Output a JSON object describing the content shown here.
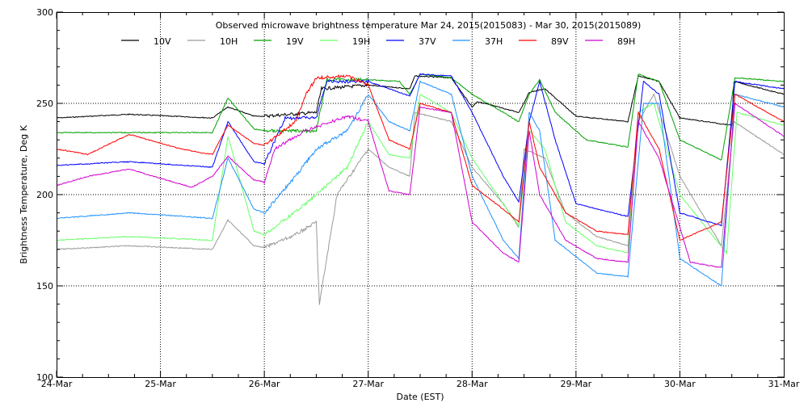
{
  "chart_data": {
    "type": "line",
    "title": "Observed microwave brightness temperature Mar 24, 2015(2015083) - Mar 30, 2015(2015089)",
    "xlabel": "Date (EST)",
    "ylabel": "Brightness Temperature, Deg K",
    "xlim": [
      "2015-03-24T00:00",
      "2015-03-31T00:00"
    ],
    "ylim": [
      100,
      300
    ],
    "x_tick_labels": [
      "24-Mar",
      "25-Mar",
      "26-Mar",
      "27-Mar",
      "28-Mar",
      "29-Mar",
      "30-Mar",
      "31-Mar"
    ],
    "y_tick_labels": [
      "100",
      "150",
      "200",
      "250",
      "300"
    ],
    "grid": "dotted, at each day and at 150/200/250",
    "legend_placement": "top, horizontal",
    "series": [
      {
        "name": "10V",
        "color": "#000000",
        "points": [
          [
            "2015-03-24T00:00",
            242
          ],
          [
            "2015-03-24T16:48",
            244
          ],
          [
            "2015-03-25T12:00",
            242
          ],
          [
            "2015-03-25T15:36",
            248
          ],
          [
            "2015-03-25T21:36",
            243
          ],
          [
            "2015-03-26T00:00",
            243
          ],
          [
            "2015-03-26T12:00",
            245
          ],
          [
            "2015-03-26T13:12",
            258
          ],
          [
            "2015-03-27T00:00",
            260
          ],
          [
            "2015-03-27T09:36",
            258
          ],
          [
            "2015-03-27T10:48",
            265
          ],
          [
            "2015-03-27T19:12",
            264
          ],
          [
            "2015-03-28T00:00",
            248
          ],
          [
            "2015-03-28T01:12",
            251
          ],
          [
            "2015-03-28T10:48",
            245
          ],
          [
            "2015-03-28T13:12",
            256
          ],
          [
            "2015-03-28T16:48",
            258
          ],
          [
            "2015-03-29T00:00",
            243
          ],
          [
            "2015-03-29T12:00",
            240
          ],
          [
            "2015-03-29T14:24",
            265
          ],
          [
            "2015-03-29T19:12",
            262
          ],
          [
            "2015-03-30T00:00",
            242
          ],
          [
            "2015-03-30T12:00",
            238
          ],
          [
            "2015-03-30T12:29",
            262
          ],
          [
            "2015-03-31T00:00",
            255
          ]
        ]
      },
      {
        "name": "10H",
        "color": "#999999",
        "points": [
          [
            "2015-03-24T00:00",
            170
          ],
          [
            "2015-03-24T16:48",
            172
          ],
          [
            "2015-03-25T12:00",
            170
          ],
          [
            "2015-03-25T15:36",
            186
          ],
          [
            "2015-03-25T21:36",
            172
          ],
          [
            "2015-03-26T00:00",
            171
          ],
          [
            "2015-03-26T07:12",
            178
          ],
          [
            "2015-03-26T12:00",
            185
          ],
          [
            "2015-03-26T12:43",
            140
          ],
          [
            "2015-03-26T16:48",
            200
          ],
          [
            "2015-03-27T00:00",
            225
          ],
          [
            "2015-03-27T04:48",
            215
          ],
          [
            "2015-03-27T09:36",
            210
          ],
          [
            "2015-03-27T10:48",
            245
          ],
          [
            "2015-03-27T19:12",
            240
          ],
          [
            "2015-03-28T00:00",
            215
          ],
          [
            "2015-03-28T07:12",
            195
          ],
          [
            "2015-03-28T10:48",
            182
          ],
          [
            "2015-03-28T12:00",
            225
          ],
          [
            "2015-03-28T16:48",
            220
          ],
          [
            "2015-03-28T21:36",
            190
          ],
          [
            "2015-03-29T04:48",
            177
          ],
          [
            "2015-03-29T12:00",
            172
          ],
          [
            "2015-03-29T14:24",
            240
          ],
          [
            "2015-03-29T18:00",
            255
          ],
          [
            "2015-03-30T00:00",
            210
          ],
          [
            "2015-03-30T09:36",
            172
          ],
          [
            "2015-03-30T12:29",
            240
          ],
          [
            "2015-03-31T00:00",
            222
          ]
        ]
      },
      {
        "name": "19V",
        "color": "#00a000",
        "points": [
          [
            "2015-03-24T00:00",
            234
          ],
          [
            "2015-03-25T12:00",
            234
          ],
          [
            "2015-03-25T15:36",
            253
          ],
          [
            "2015-03-25T21:36",
            236
          ],
          [
            "2015-03-26T00:00",
            235
          ],
          [
            "2015-03-26T12:00",
            235
          ],
          [
            "2015-03-26T14:24",
            263
          ],
          [
            "2015-03-27T00:00",
            263
          ],
          [
            "2015-03-27T07:12",
            262
          ],
          [
            "2015-03-27T09:36",
            255
          ],
          [
            "2015-03-27T12:00",
            266
          ],
          [
            "2015-03-27T19:12",
            264
          ],
          [
            "2015-03-28T00:00",
            255
          ],
          [
            "2015-03-28T07:12",
            245
          ],
          [
            "2015-03-28T10:48",
            240
          ],
          [
            "2015-03-28T13:12",
            255
          ],
          [
            "2015-03-28T15:36",
            263
          ],
          [
            "2015-03-28T19:12",
            245
          ],
          [
            "2015-03-29T02:24",
            230
          ],
          [
            "2015-03-29T12:00",
            226
          ],
          [
            "2015-03-29T14:24",
            266
          ],
          [
            "2015-03-29T19:12",
            262
          ],
          [
            "2015-03-30T00:00",
            230
          ],
          [
            "2015-03-30T09:36",
            219
          ],
          [
            "2015-03-30T12:43",
            264
          ],
          [
            "2015-03-31T00:00",
            262
          ]
        ]
      },
      {
        "name": "19H",
        "color": "#66ff66",
        "points": [
          [
            "2015-03-24T00:00",
            175
          ],
          [
            "2015-03-24T16:48",
            177
          ],
          [
            "2015-03-25T12:00",
            175
          ],
          [
            "2015-03-25T15:36",
            232
          ],
          [
            "2015-03-25T21:36",
            180
          ],
          [
            "2015-03-26T00:00",
            178
          ],
          [
            "2015-03-26T09:36",
            195
          ],
          [
            "2015-03-26T19:12",
            215
          ],
          [
            "2015-03-27T00:00",
            240
          ],
          [
            "2015-03-27T04:48",
            222
          ],
          [
            "2015-03-27T09:36",
            220
          ],
          [
            "2015-03-27T12:00",
            255
          ],
          [
            "2015-03-27T19:12",
            245
          ],
          [
            "2015-03-28T00:00",
            220
          ],
          [
            "2015-03-28T07:12",
            195
          ],
          [
            "2015-03-28T10:48",
            183
          ],
          [
            "2015-03-28T13:12",
            235
          ],
          [
            "2015-03-28T16:48",
            225
          ],
          [
            "2015-03-28T21:36",
            185
          ],
          [
            "2015-03-29T04:48",
            172
          ],
          [
            "2015-03-29T12:00",
            168
          ],
          [
            "2015-03-29T14:24",
            245
          ],
          [
            "2015-03-29T18:00",
            250
          ],
          [
            "2015-03-30T00:00",
            200
          ],
          [
            "2015-03-30T10:48",
            168
          ],
          [
            "2015-03-30T13:12",
            245
          ],
          [
            "2015-03-31T00:00",
            238
          ]
        ]
      },
      {
        "name": "37V",
        "color": "#0000ff",
        "points": [
          [
            "2015-03-24T00:00",
            216
          ],
          [
            "2015-03-24T16:48",
            218
          ],
          [
            "2015-03-25T12:00",
            215
          ],
          [
            "2015-03-25T15:36",
            240
          ],
          [
            "2015-03-25T21:36",
            218
          ],
          [
            "2015-03-26T00:00",
            217
          ],
          [
            "2015-03-26T04:48",
            242
          ],
          [
            "2015-03-26T12:00",
            242
          ],
          [
            "2015-03-26T14:24",
            262
          ],
          [
            "2015-03-27T00:00",
            262
          ],
          [
            "2015-03-27T09:36",
            254
          ],
          [
            "2015-03-27T12:00",
            266
          ],
          [
            "2015-03-27T19:12",
            265
          ],
          [
            "2015-03-28T00:00",
            245
          ],
          [
            "2015-03-28T07:12",
            210
          ],
          [
            "2015-03-28T10:48",
            196
          ],
          [
            "2015-03-28T13:12",
            240
          ],
          [
            "2015-03-28T15:36",
            262
          ],
          [
            "2015-03-28T19:12",
            230
          ],
          [
            "2015-03-29T00:00",
            195
          ],
          [
            "2015-03-29T12:00",
            188
          ],
          [
            "2015-03-29T15:36",
            262
          ],
          [
            "2015-03-29T19:12",
            255
          ],
          [
            "2015-03-30T00:00",
            190
          ],
          [
            "2015-03-30T09:36",
            183
          ],
          [
            "2015-03-30T12:43",
            262
          ],
          [
            "2015-03-31T00:00",
            258
          ]
        ]
      },
      {
        "name": "37H",
        "color": "#1e90ff",
        "points": [
          [
            "2015-03-24T00:00",
            187
          ],
          [
            "2015-03-24T16:48",
            190
          ],
          [
            "2015-03-25T12:00",
            187
          ],
          [
            "2015-03-25T15:36",
            220
          ],
          [
            "2015-03-25T21:36",
            192
          ],
          [
            "2015-03-26T00:00",
            190
          ],
          [
            "2015-03-26T07:12",
            210
          ],
          [
            "2015-03-26T12:00",
            225
          ],
          [
            "2015-03-26T19:12",
            235
          ],
          [
            "2015-03-27T00:00",
            255
          ],
          [
            "2015-03-27T04:48",
            240
          ],
          [
            "2015-03-27T09:36",
            235
          ],
          [
            "2015-03-27T12:00",
            262
          ],
          [
            "2015-03-27T19:12",
            255
          ],
          [
            "2015-03-28T00:00",
            210
          ],
          [
            "2015-03-28T07:12",
            175
          ],
          [
            "2015-03-28T10:48",
            165
          ],
          [
            "2015-03-28T13:12",
            245
          ],
          [
            "2015-03-28T15:36",
            235
          ],
          [
            "2015-03-28T19:12",
            175
          ],
          [
            "2015-03-29T04:48",
            157
          ],
          [
            "2015-03-29T12:00",
            155
          ],
          [
            "2015-03-29T15:36",
            250
          ],
          [
            "2015-03-29T19:12",
            250
          ],
          [
            "2015-03-30T00:00",
            165
          ],
          [
            "2015-03-30T09:36",
            150
          ],
          [
            "2015-03-30T12:43",
            255
          ],
          [
            "2015-03-31T00:00",
            248
          ]
        ]
      },
      {
        "name": "89V",
        "color": "#ff0000",
        "points": [
          [
            "2015-03-24T00:00",
            225
          ],
          [
            "2015-03-24T07:12",
            222
          ],
          [
            "2015-03-24T16:48",
            233
          ],
          [
            "2015-03-25T04:48",
            225
          ],
          [
            "2015-03-25T12:00",
            222
          ],
          [
            "2015-03-25T15:36",
            238
          ],
          [
            "2015-03-25T21:36",
            228
          ],
          [
            "2015-03-26T00:00",
            227
          ],
          [
            "2015-03-26T07:12",
            240
          ],
          [
            "2015-03-26T09:36",
            255
          ],
          [
            "2015-03-26T12:00",
            264
          ],
          [
            "2015-03-26T19:12",
            265
          ],
          [
            "2015-03-27T00:00",
            260
          ],
          [
            "2015-03-27T04:48",
            230
          ],
          [
            "2015-03-27T09:36",
            225
          ],
          [
            "2015-03-27T12:00",
            250
          ],
          [
            "2015-03-27T19:12",
            245
          ],
          [
            "2015-03-28T00:00",
            205
          ],
          [
            "2015-03-28T07:12",
            192
          ],
          [
            "2015-03-28T10:48",
            185
          ],
          [
            "2015-03-28T13:12",
            240
          ],
          [
            "2015-03-28T15:36",
            215
          ],
          [
            "2015-03-28T21:36",
            190
          ],
          [
            "2015-03-29T04:48",
            180
          ],
          [
            "2015-03-29T12:00",
            178
          ],
          [
            "2015-03-29T14:24",
            245
          ],
          [
            "2015-03-29T19:12",
            225
          ],
          [
            "2015-03-30T00:00",
            175
          ],
          [
            "2015-03-30T09:36",
            185
          ],
          [
            "2015-03-30T12:43",
            255
          ],
          [
            "2015-03-31T00:00",
            240
          ]
        ]
      },
      {
        "name": "89H",
        "color": "#d000d0",
        "points": [
          [
            "2015-03-24T00:00",
            205
          ],
          [
            "2015-03-24T07:12",
            210
          ],
          [
            "2015-03-24T16:48",
            214
          ],
          [
            "2015-03-25T07:12",
            204
          ],
          [
            "2015-03-25T12:00",
            210
          ],
          [
            "2015-03-25T15:36",
            221
          ],
          [
            "2015-03-25T21:36",
            208
          ],
          [
            "2015-03-26T00:00",
            207
          ],
          [
            "2015-03-26T02:24",
            225
          ],
          [
            "2015-03-26T09:36",
            235
          ],
          [
            "2015-03-26T19:12",
            243
          ],
          [
            "2015-03-27T00:00",
            240
          ],
          [
            "2015-03-27T04:48",
            202
          ],
          [
            "2015-03-27T09:36",
            200
          ],
          [
            "2015-03-27T12:00",
            248
          ],
          [
            "2015-03-27T19:12",
            245
          ],
          [
            "2015-03-28T00:00",
            185
          ],
          [
            "2015-03-28T07:12",
            168
          ],
          [
            "2015-03-28T10:48",
            163
          ],
          [
            "2015-03-28T13:12",
            235
          ],
          [
            "2015-03-28T15:36",
            200
          ],
          [
            "2015-03-28T21:36",
            175
          ],
          [
            "2015-03-29T04:48",
            165
          ],
          [
            "2015-03-29T12:00",
            163
          ],
          [
            "2015-03-29T14:24",
            240
          ],
          [
            "2015-03-29T19:12",
            220
          ],
          [
            "2015-03-30T02:24",
            163
          ],
          [
            "2015-03-30T09:36",
            160
          ],
          [
            "2015-03-30T12:43",
            250
          ],
          [
            "2015-03-31T00:00",
            232
          ]
        ]
      }
    ]
  }
}
